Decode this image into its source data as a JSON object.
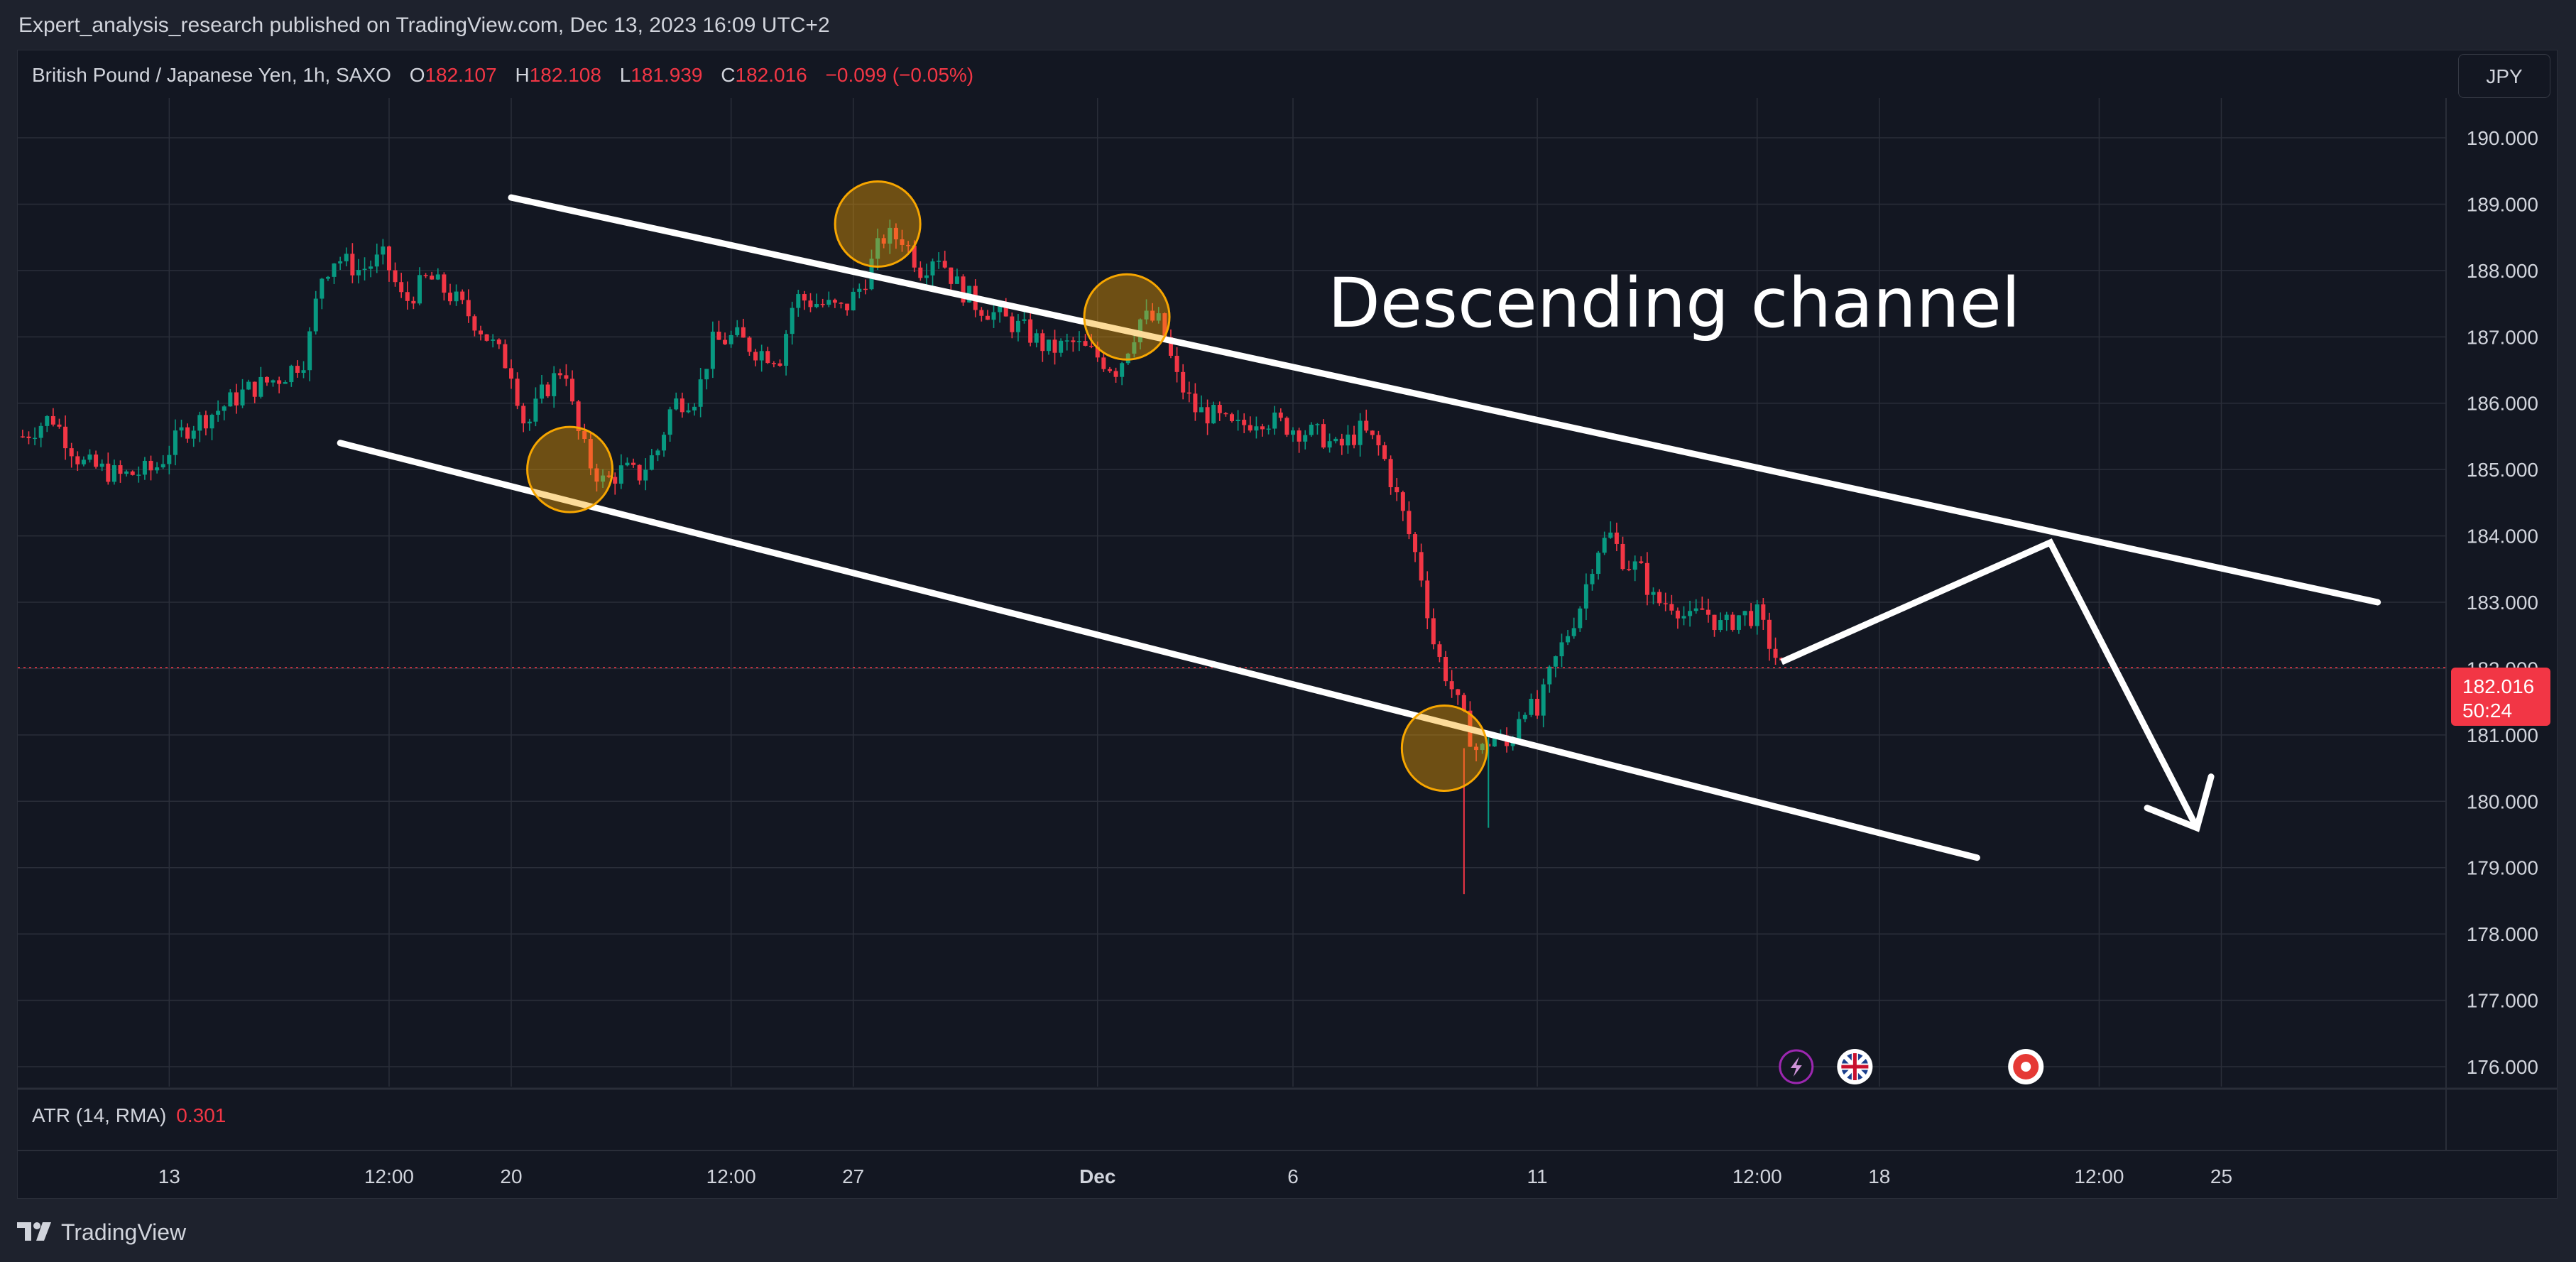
{
  "publisher_line": "Expert_analysis_research published on TradingView.com, Dec 13, 2023 16:09 UTC+2",
  "legend": {
    "symbol": "British Pound / Japanese Yen, 1h, SAXO",
    "open_label": "O",
    "open": "182.107",
    "high_label": "H",
    "high": "182.108",
    "low_label": "L",
    "low": "181.939",
    "close_label": "C",
    "close": "182.016",
    "change": "−0.099 (−0.05%)"
  },
  "currency_button": "JPY",
  "indicator": {
    "label": "ATR (14, RMA)",
    "value": "0.301"
  },
  "brand": "TradingView",
  "annotation_text": "Descending channel",
  "price_tag": {
    "price": "182.016",
    "countdown": "50:24"
  },
  "colors": {
    "up": "#089981",
    "down": "#f23645",
    "background": "#131722",
    "grid": "#2a2e39",
    "text": "#d1d4dc",
    "marker": "#f7a600",
    "annotation": "#ffffff"
  },
  "event_icons": [
    "lightning-icon",
    "uk-flag-icon",
    "record-icon"
  ],
  "chart_data": {
    "type": "candlestick",
    "ylim": [
      175.7,
      190.6
    ],
    "yticks": [
      "190.000",
      "189.000",
      "188.000",
      "187.000",
      "186.000",
      "185.000",
      "184.000",
      "183.000",
      "182.000",
      "181.000",
      "180.000",
      "179.000",
      "178.000",
      "177.000",
      "176.000"
    ],
    "xticks": [
      {
        "label": "13",
        "t": 13
      },
      {
        "label": "12:00",
        "t": 17.5
      },
      {
        "label": "20",
        "t": 20
      },
      {
        "label": "12:00",
        "t": 24.5
      },
      {
        "label": "27",
        "t": 27
      },
      {
        "label": "Dec",
        "t": 32,
        "bold": true
      },
      {
        "label": "6",
        "t": 36
      },
      {
        "label": "11",
        "t": 41
      },
      {
        "label": "12:00",
        "t": 45.5
      },
      {
        "label": "18",
        "t": 48
      },
      {
        "label": "12:00",
        "t": 52.5
      },
      {
        "label": "25",
        "t": 55
      }
    ],
    "xlim": [
      9.9,
      59.6
    ],
    "price_path": [
      [
        10.0,
        185.5
      ],
      [
        10.6,
        185.8
      ],
      [
        11.2,
        185.1
      ],
      [
        12.0,
        184.9
      ],
      [
        12.7,
        185.0
      ],
      [
        13.3,
        185.6
      ],
      [
        14.0,
        185.9
      ],
      [
        14.6,
        186.2
      ],
      [
        15.3,
        186.4
      ],
      [
        15.8,
        186.7
      ],
      [
        16.1,
        187.9
      ],
      [
        16.4,
        188.2
      ],
      [
        16.9,
        188.0
      ],
      [
        17.4,
        188.2
      ],
      [
        17.8,
        187.5
      ],
      [
        18.3,
        187.9
      ],
      [
        18.8,
        187.6
      ],
      [
        19.3,
        187.2
      ],
      [
        19.6,
        186.9
      ],
      [
        20.0,
        186.5
      ],
      [
        20.3,
        185.6
      ],
      [
        20.6,
        186.1
      ],
      [
        21.1,
        186.6
      ],
      [
        21.3,
        185.7
      ],
      [
        21.6,
        185.1
      ],
      [
        21.9,
        184.8
      ],
      [
        22.3,
        185.0
      ],
      [
        22.6,
        184.9
      ],
      [
        23.0,
        185.3
      ],
      [
        23.3,
        186.0
      ],
      [
        23.8,
        186.1
      ],
      [
        24.1,
        186.9
      ],
      [
        24.6,
        187.0
      ],
      [
        25.0,
        186.8
      ],
      [
        25.5,
        186.7
      ],
      [
        25.8,
        187.6
      ],
      [
        26.3,
        187.5
      ],
      [
        26.8,
        187.4
      ],
      [
        27.2,
        187.8
      ],
      [
        27.6,
        188.5
      ],
      [
        28.0,
        188.5
      ],
      [
        28.4,
        188.0
      ],
      [
        28.7,
        188.3
      ],
      [
        29.1,
        187.8
      ],
      [
        29.5,
        187.5
      ],
      [
        30.0,
        187.3
      ],
      [
        30.5,
        187.1
      ],
      [
        31.0,
        186.8
      ],
      [
        31.5,
        186.9
      ],
      [
        32.0,
        186.7
      ],
      [
        32.4,
        186.5
      ],
      [
        32.9,
        187.3
      ],
      [
        33.3,
        187.2
      ],
      [
        33.6,
        186.4
      ],
      [
        34.0,
        185.9
      ],
      [
        34.4,
        185.8
      ],
      [
        34.8,
        185.6
      ],
      [
        35.3,
        185.8
      ],
      [
        35.7,
        185.7
      ],
      [
        36.1,
        185.6
      ],
      [
        36.6,
        185.5
      ],
      [
        36.9,
        185.3
      ],
      [
        37.4,
        185.6
      ],
      [
        37.8,
        185.3
      ],
      [
        38.3,
        184.2
      ],
      [
        38.6,
        183.5
      ],
      [
        38.9,
        182.3
      ],
      [
        39.2,
        181.8
      ],
      [
        39.5,
        181.2
      ],
      [
        39.8,
        180.7
      ],
      [
        40.1,
        181.0
      ],
      [
        40.4,
        180.8
      ],
      [
        40.7,
        181.5
      ],
      [
        41.0,
        181.3
      ],
      [
        41.3,
        182.0
      ],
      [
        41.6,
        182.5
      ],
      [
        41.9,
        183.0
      ],
      [
        42.2,
        183.8
      ],
      [
        42.5,
        184.0
      ],
      [
        42.8,
        183.6
      ],
      [
        43.1,
        183.5
      ],
      [
        43.4,
        183.0
      ],
      [
        43.8,
        183.0
      ],
      [
        44.1,
        182.7
      ],
      [
        44.4,
        182.9
      ],
      [
        44.8,
        182.6
      ],
      [
        45.1,
        182.8
      ],
      [
        45.5,
        182.8
      ],
      [
        45.8,
        182.3
      ],
      [
        46.0,
        182.0
      ]
    ],
    "upper_channel": [
      [
        20.0,
        189.1
      ],
      [
        58.2,
        183.0
      ]
    ],
    "lower_channel": [
      [
        16.5,
        185.4
      ],
      [
        50.0,
        179.15
      ]
    ],
    "projection": [
      [
        46.0,
        182.1
      ],
      [
        51.5,
        183.9
      ],
      [
        54.5,
        179.6
      ]
    ],
    "touch_markers": [
      [
        27.5,
        188.7
      ],
      [
        21.2,
        185.0
      ],
      [
        32.6,
        187.3
      ],
      [
        39.1,
        180.8
      ]
    ],
    "current_price": 182.016,
    "event_markers": [
      46.3,
      47.5,
      51.0
    ]
  }
}
